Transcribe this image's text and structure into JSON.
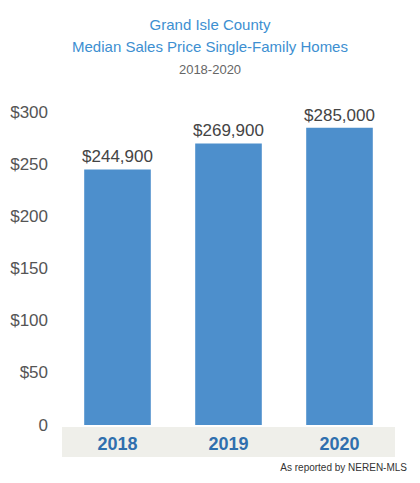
{
  "chart_data": {
    "type": "bar",
    "title": [
      "Grand Isle County",
      "Median Sales Price Single-Family Homes"
    ],
    "subtitle": "2018-2020",
    "categories": [
      "2018",
      "2019",
      "2020"
    ],
    "values": [
      244.9,
      269.9,
      285
    ],
    "value_labels": [
      "$244,900",
      "$269,900",
      "$285,000"
    ],
    "color": "#4d8fcc",
    "ylim": [
      0,
      300
    ],
    "yticks": [
      0,
      {
        "value": 50,
        "label": "$50"
      },
      {
        "value": 100,
        "label": "$100"
      },
      {
        "value": 150,
        "label": "$150"
      },
      {
        "value": 200,
        "label": "$200"
      },
      {
        "value": 250,
        "label": "$250"
      },
      {
        "value": 300,
        "label": "$300"
      }
    ],
    "grid": false,
    "data_labels": true,
    "annotation": "As reported by NEREN-MLS"
  }
}
